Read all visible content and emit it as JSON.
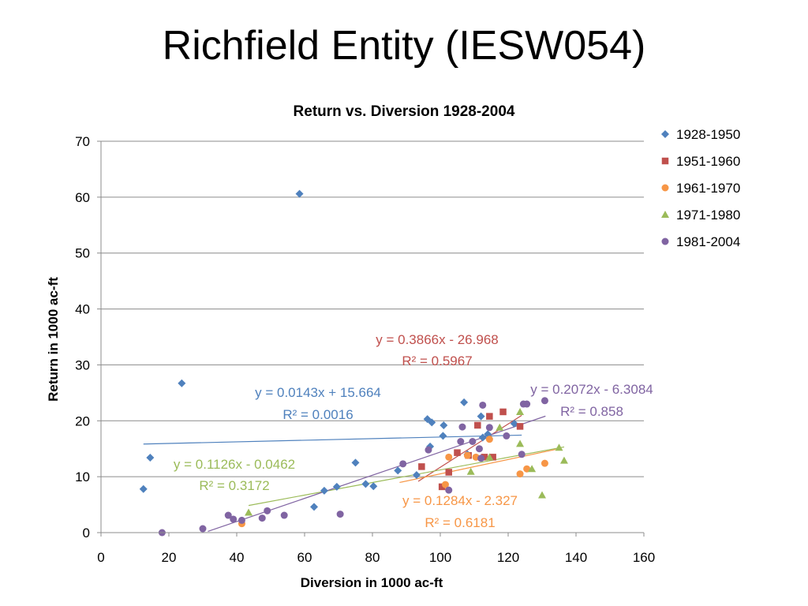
{
  "slide_title": "Richfield Entity (IESW054)",
  "chart_data": {
    "type": "scatter",
    "title": "Return vs. Diversion 1928-2004",
    "xlabel": "Diversion in 1000 ac-ft",
    "ylabel": "Return in 1000 ac-ft",
    "xlim": [
      0,
      160
    ],
    "ylim": [
      0,
      70
    ],
    "xticks": [
      "0",
      "20",
      "40",
      "60",
      "80",
      "100",
      "120",
      "140",
      "160"
    ],
    "yticks": [
      "0",
      "10",
      "20",
      "30",
      "40",
      "50",
      "60",
      "70"
    ],
    "grid": "horizontal",
    "legend_position": "right",
    "series": [
      {
        "name": "1928-1950",
        "color": "#4F81BD",
        "marker": "diamond",
        "points": [
          [
            12.5,
            7.8
          ],
          [
            14.5,
            13.4
          ],
          [
            23.8,
            26.7
          ],
          [
            58.5,
            60.6
          ],
          [
            62.8,
            4.6
          ],
          [
            65.8,
            7.5
          ],
          [
            69.5,
            8.2
          ],
          [
            75,
            12.5
          ],
          [
            78,
            8.7
          ],
          [
            80.3,
            8.3
          ],
          [
            87.5,
            11.1
          ],
          [
            93,
            10.3
          ],
          [
            96.2,
            20.3
          ],
          [
            97,
            15.4
          ],
          [
            97.5,
            19.7
          ],
          [
            100.8,
            17.3
          ],
          [
            101,
            19.2
          ],
          [
            107,
            23.3
          ],
          [
            108,
            14
          ],
          [
            112,
            20.8
          ],
          [
            112.5,
            17
          ],
          [
            114,
            17.6
          ],
          [
            121.8,
            19.5
          ]
        ],
        "trendline": {
          "slope": 0.0143,
          "intercept": 15.664,
          "x_range": [
            12.5,
            124
          ],
          "equation": "y = 0.0143x + 15.664",
          "r2": "R² = 0.0016"
        }
      },
      {
        "name": "1951-1960",
        "color": "#C0504D",
        "marker": "square",
        "points": [
          [
            94.5,
            11.8
          ],
          [
            100.5,
            8.2
          ],
          [
            102.5,
            10.8
          ],
          [
            105,
            14.3
          ],
          [
            108.3,
            13.8
          ],
          [
            111,
            19.2
          ],
          [
            113,
            13.5
          ],
          [
            114.5,
            20.8
          ],
          [
            115.5,
            13.5
          ],
          [
            118.5,
            21.6
          ],
          [
            123.5,
            19
          ]
        ],
        "trendline": {
          "slope": 0.3866,
          "intercept": -26.968,
          "x_range": [
            93.5,
            124
          ],
          "equation": "y = 0.3866x - 26.968",
          "r2": "R² = 0.5967"
        }
      },
      {
        "name": "1961-1970",
        "color": "#F79646",
        "marker": "circle",
        "points": [
          [
            41.5,
            1.6
          ],
          [
            101.5,
            8.6
          ],
          [
            102.5,
            13.5
          ],
          [
            108,
            13.8
          ],
          [
            110.5,
            13.5
          ],
          [
            114.5,
            16.7
          ],
          [
            123.5,
            10.5
          ],
          [
            125.5,
            11.4
          ],
          [
            130.8,
            12.4
          ]
        ],
        "trendline": {
          "slope": 0.1284,
          "intercept": -2.327,
          "x_range": [
            88,
            134
          ],
          "equation": "y = 0.1284x - 2.327",
          "r2": "R² = 0.6181"
        }
      },
      {
        "name": "1971-1980",
        "color": "#9BBB59",
        "marker": "triangle",
        "points": [
          [
            43.5,
            3.6
          ],
          [
            109,
            10.9
          ],
          [
            114.5,
            13.5
          ],
          [
            117.5,
            18.8
          ],
          [
            123.5,
            21.6
          ],
          [
            123.5,
            15.9
          ],
          [
            127,
            11.4
          ],
          [
            130,
            6.7
          ],
          [
            135,
            15.2
          ],
          [
            136.5,
            12.9
          ]
        ],
        "trendline": {
          "slope": 0.1126,
          "intercept": -0.0462,
          "x_range": [
            43.5,
            136.5
          ],
          "equation": "y = 0.1126x - 0.0462",
          "r2": "R² = 0.3172"
        }
      },
      {
        "name": "1981-2004",
        "color": "#8064A2",
        "marker": "circle",
        "points": [
          [
            18,
            0
          ],
          [
            30,
            0.7
          ],
          [
            37.5,
            3.1
          ],
          [
            39,
            2.4
          ],
          [
            41.5,
            2.2
          ],
          [
            47.5,
            2.6
          ],
          [
            49,
            3.9
          ],
          [
            54,
            3.1
          ],
          [
            70.5,
            3.3
          ],
          [
            89,
            12.3
          ],
          [
            96.5,
            14.8
          ],
          [
            102.5,
            7.6
          ],
          [
            106,
            16.3
          ],
          [
            106.5,
            18.9
          ],
          [
            109.5,
            16.3
          ],
          [
            111.5,
            15
          ],
          [
            112,
            13.3
          ],
          [
            112.5,
            22.8
          ],
          [
            114.5,
            18.8
          ],
          [
            119.5,
            17.3
          ],
          [
            124,
            14
          ],
          [
            124.5,
            23
          ],
          [
            125.5,
            23
          ],
          [
            130.8,
            23.6
          ]
        ],
        "trendline": {
          "slope": 0.2072,
          "intercept": -6.3084,
          "x_range": [
            31.5,
            131
          ],
          "equation": "y = 0.2072x - 6.3084",
          "r2": "R² = 0.858"
        }
      }
    ]
  }
}
